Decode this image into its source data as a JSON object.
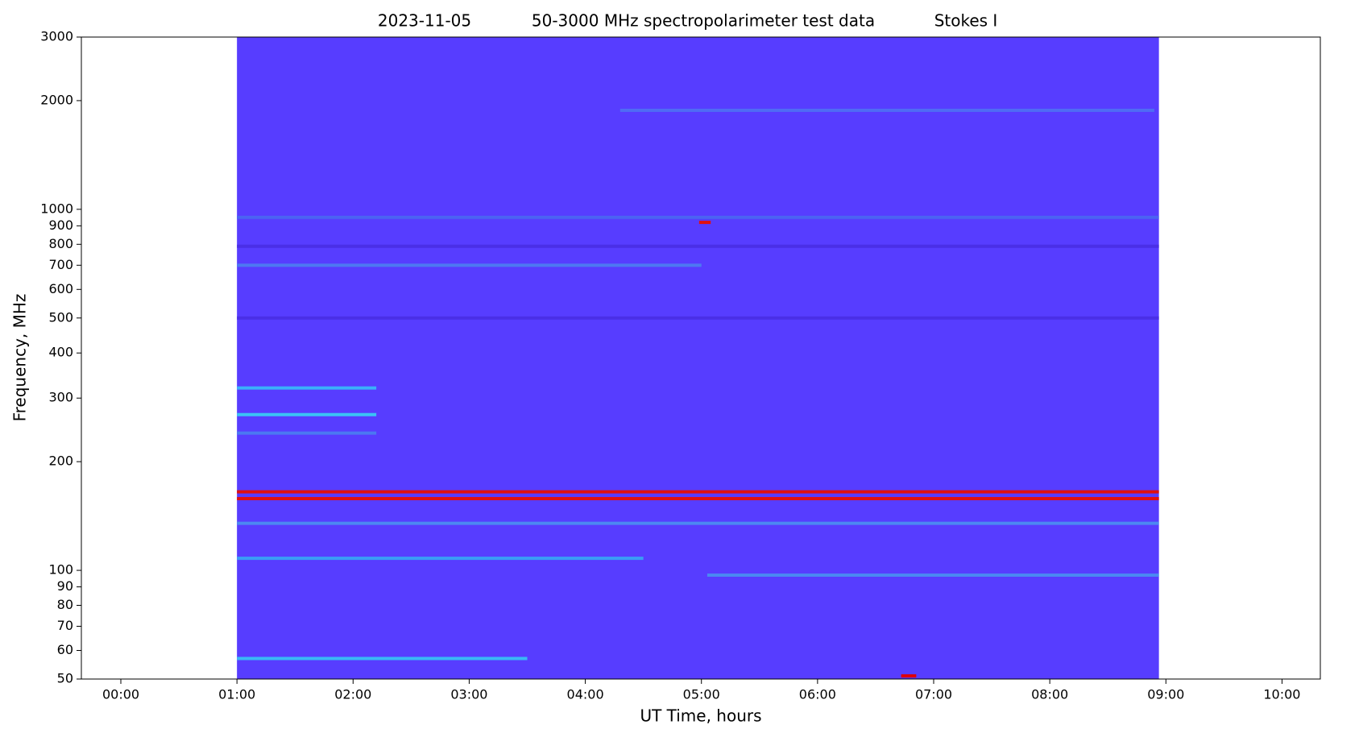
{
  "chart_data": {
    "type": "spectrogram",
    "title": [
      "2023-11-05",
      "50-3000 MHz spectropolarimeter test data",
      "Stokes I"
    ],
    "x_label": "UT Time, hours",
    "y_label": "Frequency, MHz",
    "xlim": [
      -0.34,
      10.33
    ],
    "xticks": [
      {
        "value": 0,
        "label": "00:00"
      },
      {
        "value": 1,
        "label": "01:00"
      },
      {
        "value": 2,
        "label": "02:00"
      },
      {
        "value": 3,
        "label": "03:00"
      },
      {
        "value": 4,
        "label": "04:00"
      },
      {
        "value": 5,
        "label": "05:00"
      },
      {
        "value": 6,
        "label": "06:00"
      },
      {
        "value": 7,
        "label": "07:00"
      },
      {
        "value": 8,
        "label": "08:00"
      },
      {
        "value": 9,
        "label": "09:00"
      },
      {
        "value": 10,
        "label": "10:00"
      }
    ],
    "ylim": [
      50,
      3000
    ],
    "yticks": [
      50,
      60,
      70,
      80,
      90,
      100,
      200,
      300,
      400,
      500,
      600,
      700,
      800,
      900,
      1000,
      2000,
      3000
    ],
    "log_y": true,
    "time_range": [
      1.0,
      8.94
    ],
    "background_color": "#573dff",
    "features": [
      {
        "freq": 1880,
        "t0": 4.3,
        "t1": 8.9,
        "color": "#4f6cf4"
      },
      {
        "freq": 950,
        "t0": 1.0,
        "t1": 8.94,
        "color": "#4b63f2"
      },
      {
        "freq": 920,
        "t0": 4.98,
        "t1": 5.08,
        "color": "#e01010"
      },
      {
        "freq": 790,
        "t0": 1.0,
        "t1": 8.94,
        "color": "#4a2fe6"
      },
      {
        "freq": 700,
        "t0": 1.0,
        "t1": 5.0,
        "color": "#4d78f2"
      },
      {
        "freq": 500,
        "t0": 1.0,
        "t1": 8.94,
        "color": "#4a2fe6"
      },
      {
        "freq": 320,
        "t0": 1.0,
        "t1": 2.2,
        "color": "#3ab0fa"
      },
      {
        "freq": 270,
        "t0": 1.0,
        "t1": 2.2,
        "color": "#3ac4f5"
      },
      {
        "freq": 240,
        "t0": 1.0,
        "t1": 2.2,
        "color": "#4b78f2"
      },
      {
        "freq": 165,
        "t0": 1.0,
        "t1": 8.94,
        "color": "#e01010"
      },
      {
        "freq": 158,
        "t0": 1.0,
        "t1": 8.94,
        "color": "#e01010"
      },
      {
        "freq": 135,
        "t0": 1.0,
        "t1": 8.94,
        "color": "#4c88f2"
      },
      {
        "freq": 108,
        "t0": 1.0,
        "t1": 4.5,
        "color": "#3a9cf5"
      },
      {
        "freq": 97,
        "t0": 5.05,
        "t1": 8.94,
        "color": "#4a88f2"
      },
      {
        "freq": 57,
        "t0": 1.0,
        "t1": 3.5,
        "color": "#39b8f5"
      },
      {
        "freq": 51,
        "t0": 6.72,
        "t1": 6.85,
        "color": "#e00000"
      }
    ]
  }
}
